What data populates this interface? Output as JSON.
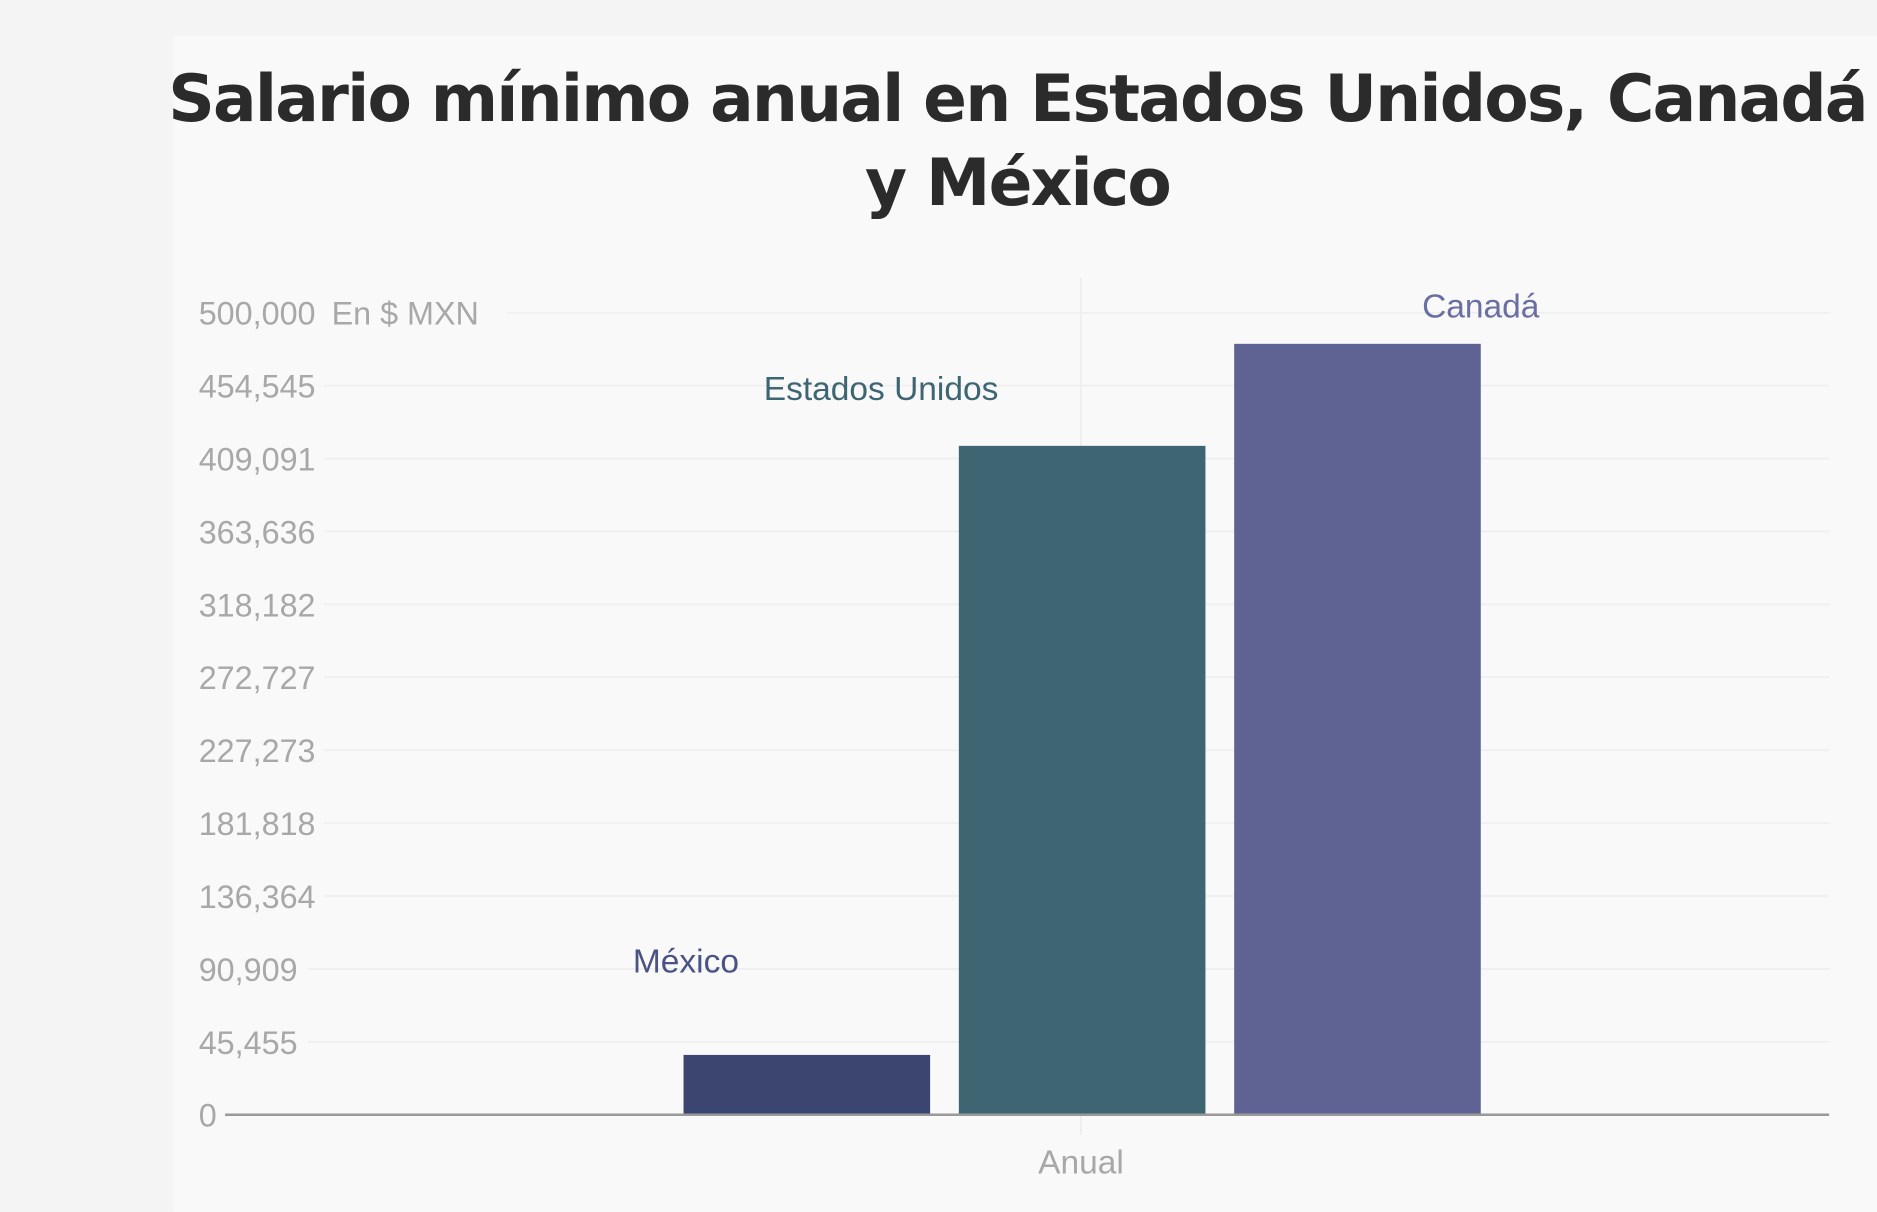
{
  "chart_data": {
    "type": "bar",
    "title_lines": [
      "Salario mínimo anual en Estados Unidos, Canadá",
      "y México"
    ],
    "unit_label": "En $ MXN",
    "categories": [
      "Anual"
    ],
    "xlabel": "Anual",
    "ylabel": "",
    "ylim": [
      0,
      500000
    ],
    "yticks": [
      0,
      45455,
      90909,
      136364,
      181818,
      227273,
      272727,
      318182,
      363636,
      409091,
      454545,
      500000
    ],
    "ytick_labels": [
      "0",
      "45,455",
      "90,909",
      "136,364",
      "181,818",
      "227,273",
      "272,727",
      "318,182",
      "363,636",
      "409,091",
      "454,545",
      "500,000"
    ],
    "grid": true,
    "series": [
      {
        "name": "México",
        "values": [
          37300
        ],
        "color": "#3c4470",
        "label_color": "#4a5384"
      },
      {
        "name": "Estados Unidos",
        "values": [
          417000
        ],
        "color": "#3e6572",
        "label_color": "#3e6572"
      },
      {
        "name": "Canadá",
        "values": [
          480600
        ],
        "color": "#5e6394",
        "label_color": "#6a6fa3"
      }
    ]
  }
}
